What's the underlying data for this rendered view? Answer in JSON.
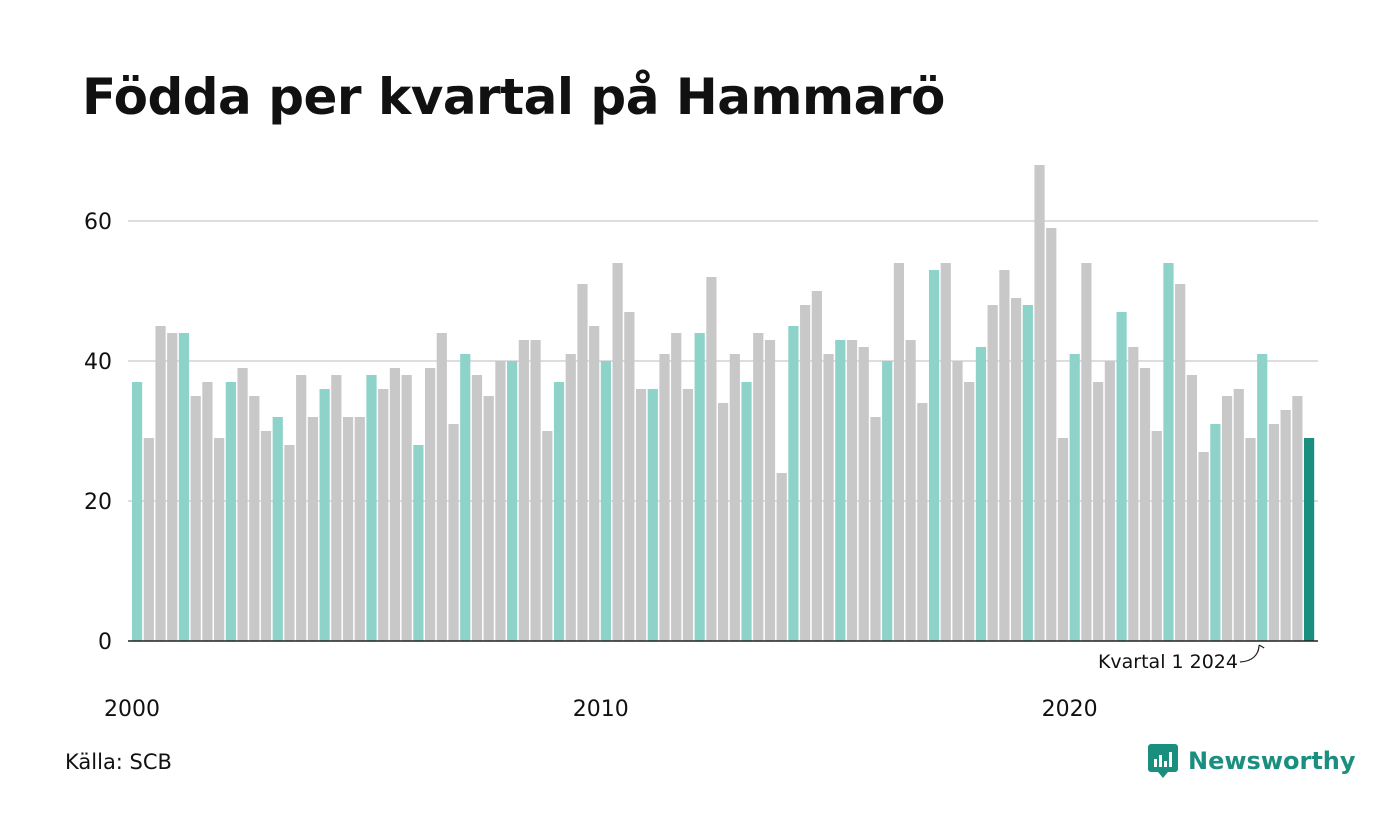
{
  "title": "Födda per kvartal på Hammarö",
  "source": "Källa: SCB",
  "brand": "Newsworthy",
  "colors": {
    "q1": "#8dd3c9",
    "other": "#c8c8c8",
    "latest": "#1a8f80",
    "grid": "#dddddd",
    "axis": "#222222",
    "text": "#111111"
  },
  "chart_data": {
    "type": "bar",
    "x_start": "2000 Q1",
    "x_ticks": [
      "2000",
      "2010",
      "2020"
    ],
    "y_ticks": [
      "0",
      "20",
      "40",
      "60"
    ],
    "ylim": [
      0,
      68
    ],
    "annotation": "Kvartal 1 2024",
    "values": [
      37,
      29,
      45,
      44,
      44,
      35,
      37,
      29,
      37,
      39,
      35,
      30,
      32,
      28,
      38,
      32,
      36,
      38,
      32,
      32,
      38,
      36,
      39,
      38,
      28,
      39,
      44,
      31,
      41,
      38,
      35,
      40,
      40,
      43,
      43,
      30,
      37,
      41,
      51,
      45,
      40,
      54,
      47,
      36,
      36,
      41,
      44,
      36,
      44,
      52,
      34,
      41,
      37,
      44,
      43,
      24,
      45,
      48,
      50,
      41,
      43,
      43,
      42,
      32,
      40,
      54,
      43,
      34,
      53,
      54,
      40,
      37,
      42,
      48,
      53,
      49,
      48,
      68,
      59,
      29,
      41,
      54,
      37,
      40,
      47,
      42,
      39,
      30,
      54,
      51,
      38,
      27,
      31,
      35,
      36,
      29,
      41,
      31,
      33,
      35,
      29
    ]
  }
}
